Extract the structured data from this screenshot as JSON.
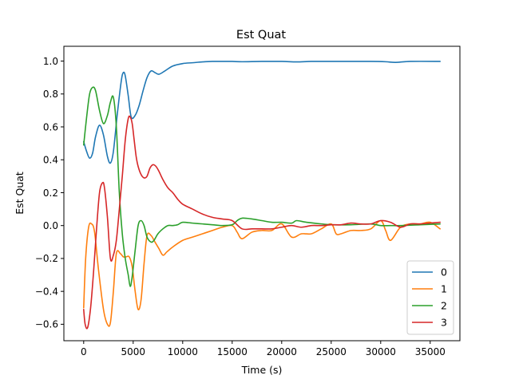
{
  "chart_data": {
    "type": "line",
    "title": "Est Quat",
    "xlabel": "Time (s)",
    "ylabel": "Est Quat",
    "xlim": [
      -2000,
      38000
    ],
    "ylim": [
      -0.7,
      1.09
    ],
    "xticks": [
      0,
      5000,
      10000,
      15000,
      20000,
      25000,
      30000,
      35000
    ],
    "xtick_labels": [
      "0",
      "5000",
      "10000",
      "15000",
      "20000",
      "25000",
      "30000",
      "35000"
    ],
    "yticks": [
      -0.6,
      -0.4,
      -0.2,
      0.0,
      0.2,
      0.4,
      0.6,
      0.8,
      1.0
    ],
    "ytick_labels": [
      "−0.6",
      "−0.4",
      "−0.2",
      "0.0",
      "0.2",
      "0.4",
      "0.6",
      "0.8",
      "1.0"
    ],
    "grid": false,
    "legend_position": "lower-right",
    "series": [
      {
        "name": "0",
        "color": "#1f77b4",
        "x": [
          0,
          300,
          600,
          900,
          1200,
          1600,
          2000,
          2400,
          2700,
          3000,
          3400,
          3800,
          4000,
          4200,
          4500,
          4800,
          5200,
          5600,
          6000,
          6400,
          6800,
          7200,
          7600,
          8200,
          9000,
          10000,
          11000,
          12000,
          13000,
          14000,
          15000,
          16000,
          18000,
          20000,
          21500,
          23000,
          25000,
          27000,
          29000,
          30500,
          31500,
          33000,
          36000
        ],
        "y": [
          0.51,
          0.45,
          0.41,
          0.44,
          0.54,
          0.61,
          0.55,
          0.42,
          0.38,
          0.45,
          0.68,
          0.88,
          0.93,
          0.91,
          0.79,
          0.66,
          0.67,
          0.73,
          0.82,
          0.9,
          0.94,
          0.93,
          0.92,
          0.94,
          0.97,
          0.985,
          0.99,
          0.995,
          0.998,
          0.998,
          0.998,
          0.996,
          0.998,
          0.998,
          0.995,
          0.998,
          0.998,
          0.998,
          0.998,
          0.996,
          0.992,
          0.998,
          0.998
        ]
      },
      {
        "name": "1",
        "color": "#ff7f0e",
        "x": [
          0,
          200,
          500,
          800,
          1100,
          1500,
          2000,
          2400,
          2700,
          3000,
          3300,
          3700,
          4000,
          4300,
          4600,
          4900,
          5200,
          5500,
          5800,
          6100,
          6400,
          6800,
          7200,
          7600,
          8000,
          8400,
          9000,
          10000,
          11000,
          12000,
          13000,
          14000,
          15000,
          15500,
          16000,
          17000,
          18000,
          19000,
          20000,
          21000,
          22000,
          23000,
          24000,
          25000,
          25500,
          26000,
          27000,
          28000,
          29000,
          30000,
          30500,
          31000,
          32000,
          33000,
          34000,
          35000,
          36000
        ],
        "y": [
          -0.5,
          -0.2,
          -0.01,
          0.01,
          -0.04,
          -0.27,
          -0.51,
          -0.6,
          -0.59,
          -0.4,
          -0.17,
          -0.17,
          -0.19,
          -0.19,
          -0.19,
          -0.25,
          -0.4,
          -0.51,
          -0.45,
          -0.23,
          -0.06,
          -0.06,
          -0.1,
          -0.14,
          -0.18,
          -0.16,
          -0.13,
          -0.09,
          -0.07,
          -0.05,
          -0.03,
          -0.01,
          0.0,
          -0.04,
          -0.08,
          -0.04,
          -0.03,
          -0.03,
          0.01,
          -0.07,
          -0.05,
          -0.05,
          -0.02,
          0.01,
          -0.05,
          -0.05,
          -0.03,
          -0.03,
          -0.02,
          0.03,
          -0.03,
          -0.09,
          -0.01,
          0.01,
          0.01,
          0.02,
          -0.02
        ]
      },
      {
        "name": "2",
        "color": "#2ca02c",
        "x": [
          0,
          300,
          600,
          900,
          1200,
          1600,
          2000,
          2400,
          2700,
          3000,
          3300,
          3600,
          3900,
          4200,
          4500,
          4700,
          4900,
          5200,
          5500,
          5800,
          6100,
          6400,
          6800,
          7100,
          7500,
          8000,
          8500,
          9000,
          9500,
          10000,
          11000,
          12000,
          13000,
          14000,
          15000,
          15500,
          16000,
          17000,
          18000,
          19000,
          20000,
          21000,
          21500,
          22500,
          24000,
          25000,
          27000,
          29000,
          30000,
          31000,
          32000,
          34000,
          36000
        ],
        "y": [
          0.49,
          0.66,
          0.8,
          0.84,
          0.82,
          0.7,
          0.62,
          0.67,
          0.75,
          0.78,
          0.6,
          0.2,
          -0.05,
          -0.2,
          -0.3,
          -0.37,
          -0.31,
          -0.15,
          0.0,
          0.03,
          0.0,
          -0.07,
          -0.1,
          -0.09,
          -0.05,
          -0.02,
          0.0,
          0.0,
          0.005,
          0.02,
          0.015,
          0.01,
          0.005,
          0.0,
          0.005,
          0.03,
          0.045,
          0.04,
          0.03,
          0.02,
          0.02,
          0.015,
          0.03,
          0.02,
          0.01,
          0.005,
          0.005,
          0.01,
          0.0,
          0.0,
          0.0,
          0.005,
          0.01
        ]
      },
      {
        "name": "3",
        "color": "#d62728",
        "x": [
          0,
          150,
          400,
          700,
          1000,
          1300,
          1600,
          1900,
          2100,
          2400,
          2700,
          3000,
          3300,
          3600,
          3900,
          4200,
          4500,
          4700,
          4900,
          5100,
          5300,
          5500,
          5800,
          6100,
          6400,
          6700,
          7000,
          7300,
          7600,
          8000,
          8500,
          9000,
          9500,
          10000,
          11000,
          12000,
          13000,
          14000,
          15000,
          16000,
          17000,
          18000,
          19000,
          20000,
          21000,
          22000,
          23000,
          24000,
          25000,
          26000,
          27000,
          28000,
          29000,
          30000,
          31000,
          32000,
          33000,
          34000,
          35000,
          36000
        ],
        "y": [
          -0.51,
          -0.6,
          -0.62,
          -0.5,
          -0.28,
          -0.02,
          0.2,
          0.26,
          0.23,
          0.05,
          -0.2,
          -0.18,
          -0.09,
          0.1,
          0.3,
          0.52,
          0.65,
          0.66,
          0.62,
          0.52,
          0.42,
          0.36,
          0.31,
          0.29,
          0.3,
          0.35,
          0.37,
          0.36,
          0.33,
          0.28,
          0.23,
          0.2,
          0.16,
          0.13,
          0.1,
          0.07,
          0.05,
          0.04,
          0.03,
          -0.02,
          -0.02,
          -0.02,
          -0.02,
          -0.01,
          0.0,
          -0.01,
          0.0,
          0.0,
          0.005,
          0.005,
          0.015,
          0.01,
          0.01,
          0.03,
          0.02,
          -0.01,
          0.01,
          0.01,
          0.015,
          0.02
        ]
      }
    ]
  }
}
